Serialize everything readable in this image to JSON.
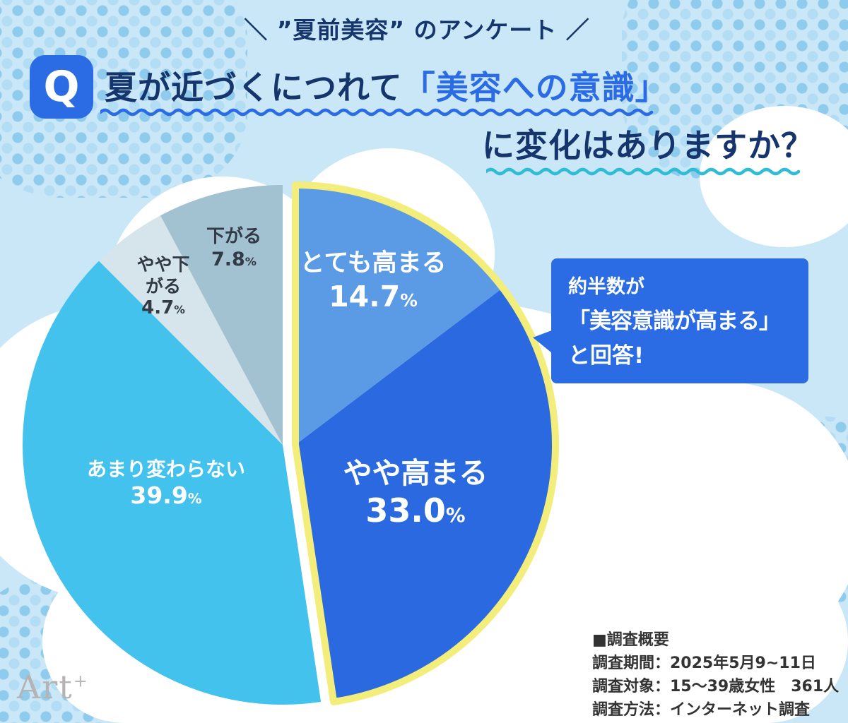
{
  "header": {
    "tagline": "＼ ”夏前美容” のアンケート ／",
    "q_badge": "Q",
    "title_part1": "夏が近づくにつれて",
    "title_highlight": "「美容への意識」",
    "title_line2": "に変化はありますか？"
  },
  "chart_data": {
    "type": "pie",
    "title": "夏が近づくにつれて「美容への意識」に変化はありますか？",
    "unit": "%",
    "start_angle_deg": 0,
    "direction": "clockwise",
    "legend_position": "labels-on-chart",
    "highlight_outline_color": "#f3ee7b",
    "highlight_note": "とても高まる+やや高まる=47.7% exploded with yellow outline",
    "segments": [
      {
        "key": "totemo-takamaru",
        "label": "とても高まる",
        "value": 14.7,
        "display": "14.7",
        "color": "#5b9be6",
        "highlighted": true
      },
      {
        "key": "yaya-takamaru",
        "label": "やや高まる",
        "value": 33.0,
        "display": "33.0",
        "color": "#2a69e0",
        "highlighted": true
      },
      {
        "key": "amari-kawaranai",
        "label": "あまり変わらない",
        "value": 39.9,
        "display": "39.9",
        "color": "#42c2ec",
        "highlighted": false
      },
      {
        "key": "yaya-sagaru",
        "label": "やや下がる",
        "value": 4.7,
        "display": "4.7",
        "color": "#d6e4ec",
        "highlighted": false
      },
      {
        "key": "sagaru",
        "label": "下がる",
        "value": 7.8,
        "display": "7.8",
        "color": "#a2c2d2",
        "highlighted": false
      }
    ]
  },
  "callout": {
    "line1": "約半数が",
    "line2": "「美容意識が高まる」",
    "line3": "と回答!"
  },
  "survey": {
    "heading": "■調査概要",
    "period": "調査期間：2025年5月9~11日",
    "subjects": "調査対象：15〜39歳女性　361人",
    "method": "調査方法：インターネット調査"
  },
  "logo": {
    "text": "Art",
    "sup": "+"
  }
}
